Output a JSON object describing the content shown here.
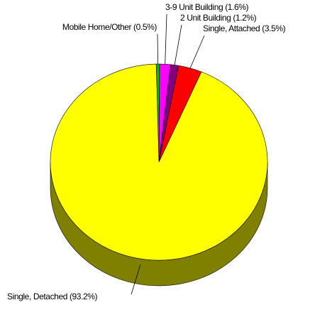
{
  "chart_data": {
    "type": "pie",
    "categories": [
      "Mobile Home/Other",
      "3-9 Unit Building",
      "2 Unit Building",
      "Single, Attached",
      "Single, Detached"
    ],
    "values": [
      0.5,
      1.6,
      1.2,
      3.5,
      93.2
    ],
    "value_labels": [
      "(0.5%)",
      "(1.6%)",
      "(1.2%)",
      "(3.5%)",
      "(93.2%)"
    ],
    "colors": [
      "#00c000",
      "#ff00ff",
      "#800080",
      "#ff0000",
      "#ffff00"
    ]
  }
}
